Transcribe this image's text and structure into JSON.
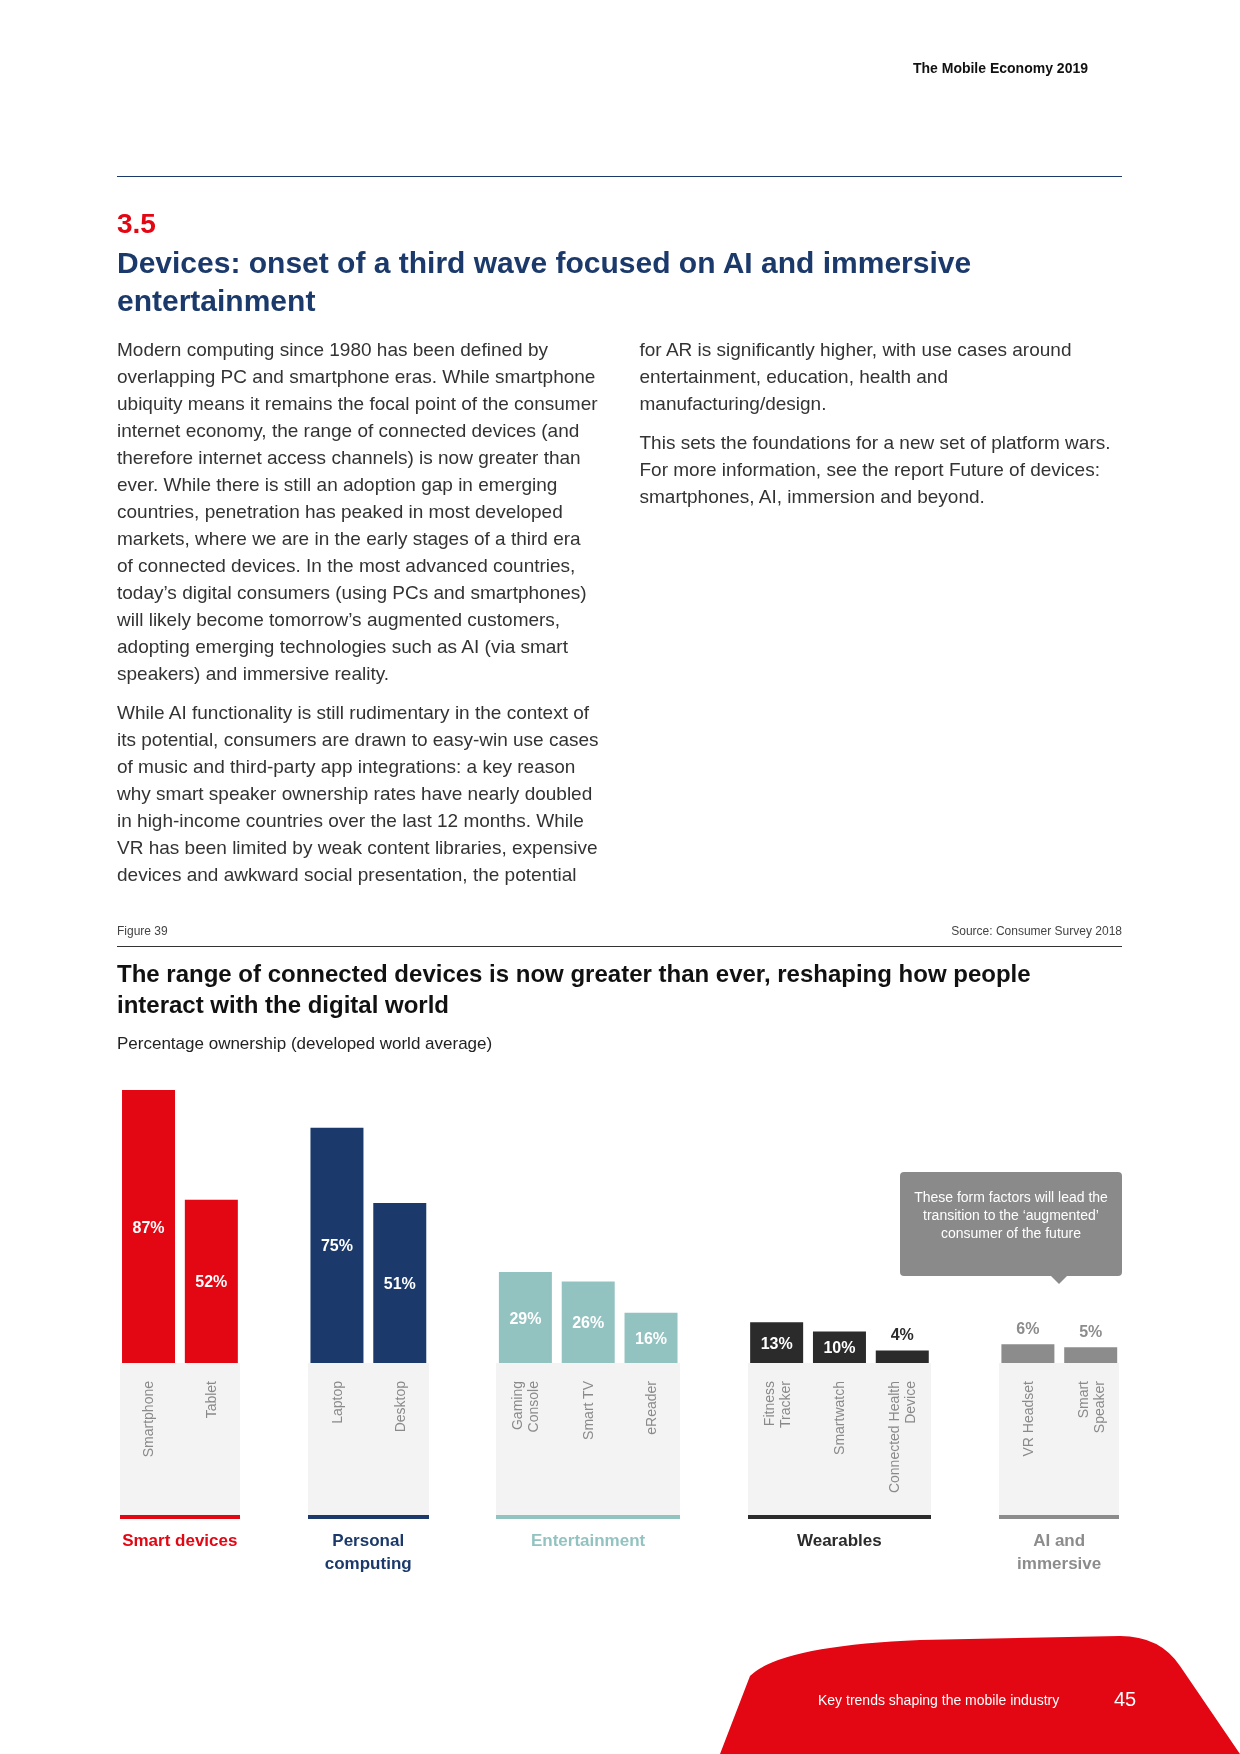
{
  "chart_data": {
    "type": "bar",
    "title": "The range of connected devices is now greater than ever, reshaping how people interact with the digital world",
    "subtitle": "Percentage ownership (developed world average)",
    "categories": [
      "Smartphone",
      "Tablet",
      null,
      "Laptop",
      "Desktop",
      null,
      "Gaming Console",
      "Smart TV",
      "eReader",
      null,
      "Fitness Tracker",
      "Smartwatch",
      "Connected Health Device",
      null,
      "VR Headset",
      "Smart Speaker"
    ],
    "values": [
      87,
      52,
      null,
      75,
      51,
      null,
      29,
      26,
      16,
      null,
      13,
      10,
      4,
      null,
      6,
      5
    ],
    "value_labels": [
      "87%",
      "52%",
      null,
      "75%",
      "51%",
      null,
      "29%",
      "26%",
      "16%",
      null,
      "13%",
      "10%",
      "4%",
      null,
      "6%",
      "5%"
    ],
    "colors": [
      "#e30613",
      "#e30613",
      null,
      "#1b3a6b",
      "#1b3a6b",
      null,
      "#93c3c0",
      "#93c3c0",
      "#93c3c0",
      null,
      "#2b2b2b",
      "#2b2b2b",
      "#2b2b2b",
      null,
      "#8c8c8c",
      "#8c8c8c"
    ],
    "annotations": [
      "The Mobile Economy 2019",
      "3.5",
      "Devices: onset of a third wave focused on AI and immersive entertainment",
      "Modern computing since 1980 has been defined by overlapping PC and smartphone eras. While smartphone ubiquity means it remains the focal point of the consumer internet economy, the range of connected devices (and therefore internet access channels) is now greater than ever. While there is still an adoption gap in emerging countries, penetration has peaked in most developed markets, where we are in the early stages of a third era of connected devices. In the most advanced countries, today’s digital consumers (using PCs and smartphones) will likely become tomorrow’s augmented customers, adopting emerging technologies such as AI (via smart speakers) and immersive reality.",
      "While AI functionality is still rudimentary in the context of its potential, consumers are drawn to easy-win use cases of music and third-party app integrations: a key reason why smart speaker ownership rates have nearly doubled in high-income countries over the last 12 months. While VR has been limited by weak content libraries, expensive devices and awkward social presentation, the potential for AR is significantly higher, with use cases around entertainment, education, health and manufacturing/design.",
      "This sets the foundations for a new set of platform wars. For more information, see the report Future of devices: smartphones, AI, immersion and beyond.",
      "Figure 39",
      "Source: Consumer Survey 2018",
      "Smart devices",
      "Personal computing",
      "Entertainment",
      "Wearables",
      "AI and immersive",
      "These form factors will lead the transition to the ‘augmented’ consumer of the future",
      "Key trends shaping the mobile industry",
      "45"
    ]
  }
}
